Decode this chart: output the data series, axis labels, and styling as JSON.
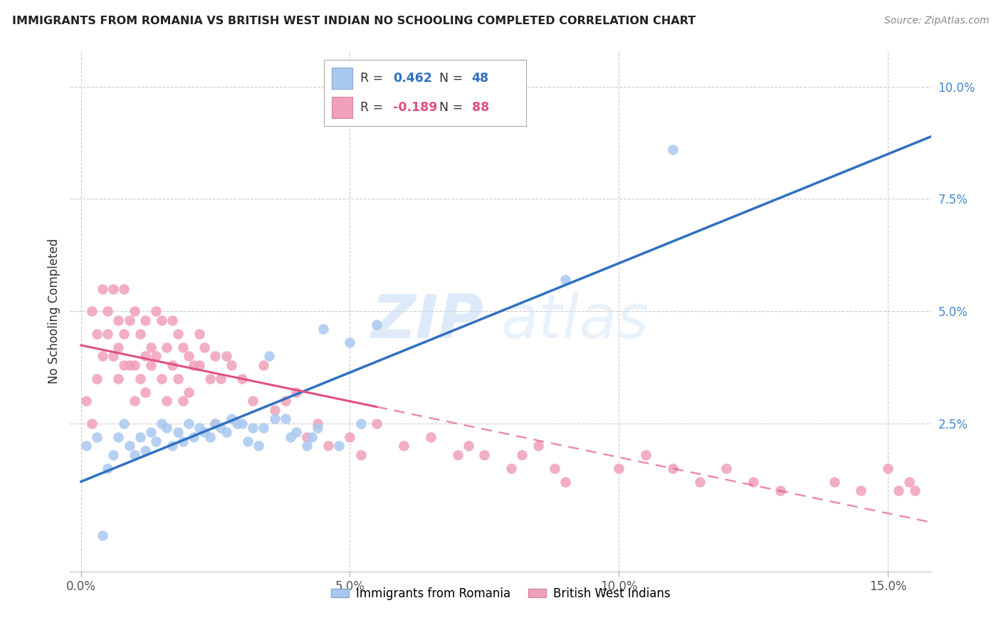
{
  "title": "IMMIGRANTS FROM ROMANIA VS BRITISH WEST INDIAN NO SCHOOLING COMPLETED CORRELATION CHART",
  "source": "Source: ZipAtlas.com",
  "xlabel_ticks": [
    "0.0%",
    "5.0%",
    "10.0%",
    "15.0%"
  ],
  "xlabel_tick_vals": [
    0.0,
    0.05,
    0.1,
    0.15
  ],
  "ylabel_ticks": [
    "2.5%",
    "5.0%",
    "7.5%",
    "10.0%"
  ],
  "ylabel_tick_vals": [
    0.025,
    0.05,
    0.075,
    0.1
  ],
  "xmin": -0.002,
  "xmax": 0.158,
  "ymin": -0.008,
  "ymax": 0.108,
  "romania_R": 0.462,
  "romania_N": 48,
  "bwi_R": -0.189,
  "bwi_N": 88,
  "ylabel": "No Schooling Completed",
  "legend_items": [
    "Immigrants from Romania",
    "British West Indians"
  ],
  "blue_color": "#a8c8f0",
  "pink_color": "#f0a0b8",
  "blue_line_color": "#3070c0",
  "pink_line_color": "#e05080",
  "background_color": "#ffffff",
  "watermark_text": "ZIPatlas",
  "romania_points_x": [
    0.001,
    0.003,
    0.004,
    0.005,
    0.006,
    0.007,
    0.008,
    0.009,
    0.01,
    0.011,
    0.012,
    0.013,
    0.014,
    0.015,
    0.016,
    0.017,
    0.018,
    0.019,
    0.02,
    0.021,
    0.022,
    0.023,
    0.024,
    0.025,
    0.026,
    0.027,
    0.028,
    0.029,
    0.03,
    0.031,
    0.032,
    0.033,
    0.034,
    0.035,
    0.036,
    0.038,
    0.039,
    0.04,
    0.042,
    0.043,
    0.044,
    0.045,
    0.048,
    0.05,
    0.052,
    0.055,
    0.09,
    0.11
  ],
  "romania_points_y": [
    0.02,
    0.022,
    0.0,
    0.015,
    0.018,
    0.022,
    0.025,
    0.02,
    0.018,
    0.022,
    0.019,
    0.023,
    0.021,
    0.025,
    0.024,
    0.02,
    0.023,
    0.021,
    0.025,
    0.022,
    0.024,
    0.023,
    0.022,
    0.025,
    0.024,
    0.023,
    0.026,
    0.025,
    0.025,
    0.021,
    0.024,
    0.02,
    0.024,
    0.04,
    0.026,
    0.026,
    0.022,
    0.023,
    0.02,
    0.022,
    0.024,
    0.046,
    0.02,
    0.043,
    0.025,
    0.047,
    0.057,
    0.086
  ],
  "bwi_points_x": [
    0.001,
    0.002,
    0.002,
    0.003,
    0.003,
    0.004,
    0.004,
    0.005,
    0.005,
    0.006,
    0.006,
    0.007,
    0.007,
    0.007,
    0.008,
    0.008,
    0.008,
    0.009,
    0.009,
    0.01,
    0.01,
    0.01,
    0.011,
    0.011,
    0.012,
    0.012,
    0.012,
    0.013,
    0.013,
    0.014,
    0.014,
    0.015,
    0.015,
    0.016,
    0.016,
    0.017,
    0.017,
    0.018,
    0.018,
    0.019,
    0.019,
    0.02,
    0.02,
    0.021,
    0.022,
    0.022,
    0.023,
    0.024,
    0.025,
    0.025,
    0.026,
    0.027,
    0.028,
    0.03,
    0.032,
    0.034,
    0.036,
    0.038,
    0.04,
    0.042,
    0.044,
    0.046,
    0.05,
    0.052,
    0.055,
    0.06,
    0.065,
    0.07,
    0.072,
    0.075,
    0.08,
    0.082,
    0.085,
    0.088,
    0.09,
    0.1,
    0.105,
    0.11,
    0.115,
    0.12,
    0.125,
    0.13,
    0.14,
    0.145,
    0.15,
    0.152,
    0.154,
    0.155
  ],
  "bwi_points_y": [
    0.03,
    0.025,
    0.05,
    0.045,
    0.035,
    0.055,
    0.04,
    0.05,
    0.045,
    0.055,
    0.04,
    0.048,
    0.042,
    0.035,
    0.055,
    0.045,
    0.038,
    0.048,
    0.038,
    0.05,
    0.038,
    0.03,
    0.045,
    0.035,
    0.048,
    0.04,
    0.032,
    0.042,
    0.038,
    0.05,
    0.04,
    0.048,
    0.035,
    0.042,
    0.03,
    0.048,
    0.038,
    0.045,
    0.035,
    0.042,
    0.03,
    0.04,
    0.032,
    0.038,
    0.045,
    0.038,
    0.042,
    0.035,
    0.04,
    0.025,
    0.035,
    0.04,
    0.038,
    0.035,
    0.03,
    0.038,
    0.028,
    0.03,
    0.032,
    0.022,
    0.025,
    0.02,
    0.022,
    0.018,
    0.025,
    0.02,
    0.022,
    0.018,
    0.02,
    0.018,
    0.015,
    0.018,
    0.02,
    0.015,
    0.012,
    0.015,
    0.018,
    0.015,
    0.012,
    0.015,
    0.012,
    0.01,
    0.012,
    0.01,
    0.015,
    0.01,
    0.012,
    0.01
  ]
}
